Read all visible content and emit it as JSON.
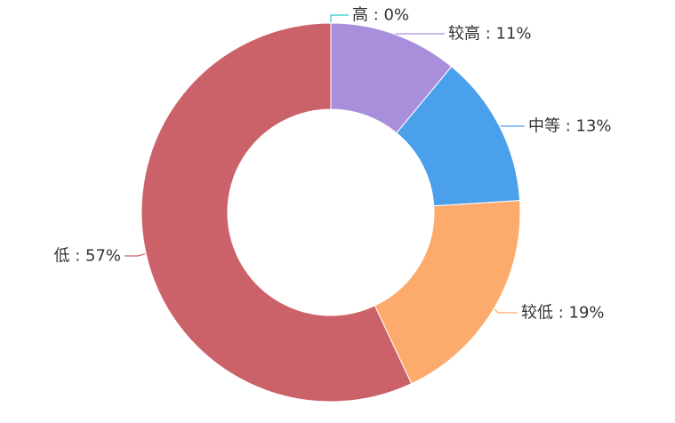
{
  "chart_data": {
    "type": "pie",
    "donut": true,
    "title": "",
    "start_angle_deg": 90,
    "direction": "clockwise",
    "slices": [
      {
        "name": "高",
        "value": 0,
        "label": "高 : 0%",
        "color": "#2ec7c9"
      },
      {
        "name": "较高",
        "value": 11,
        "label": "较高 : 11%",
        "color": "#a98fdb"
      },
      {
        "name": "中等",
        "value": 13,
        "label": "中等 : 13%",
        "color": "#4aa0ea"
      },
      {
        "name": "较低",
        "value": 19,
        "label": "较低 : 19%",
        "color": "#fcab6c"
      },
      {
        "name": "低",
        "value": 57,
        "label": "低 : 57%",
        "color": "#cc6269"
      }
    ]
  }
}
